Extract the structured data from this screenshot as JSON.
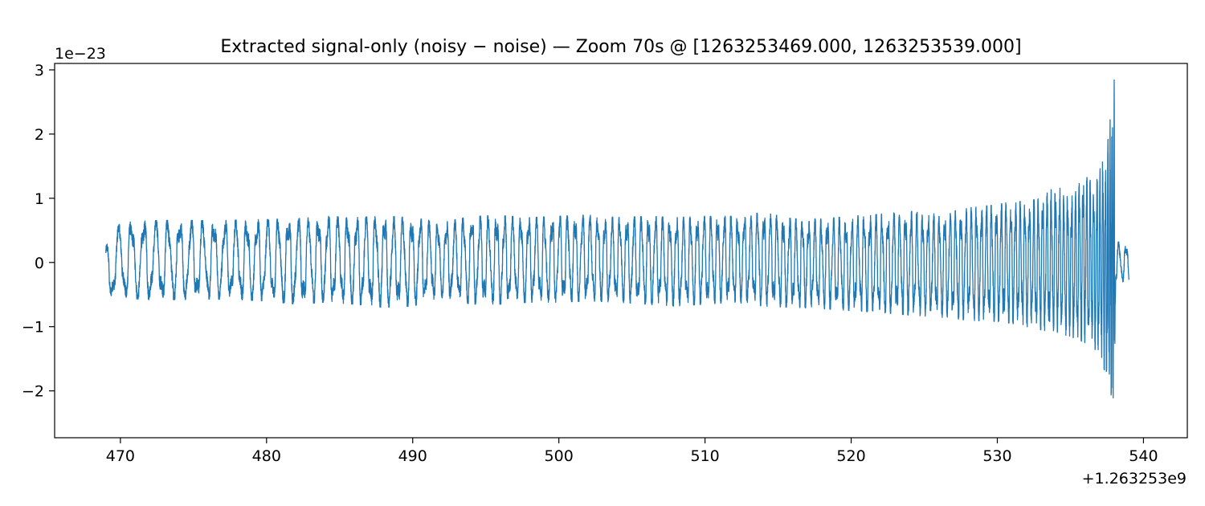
{
  "chart_data": {
    "type": "line",
    "title": "Extracted signal-only (noisy − noise) — Zoom 70s @ [1263253469.000, 1263253539.000]",
    "xlabel": "",
    "ylabel": "",
    "x_offset_label": "+1.263253e9",
    "y_scale_label": "1e−23",
    "xlim": [
      465.5,
      543.0
    ],
    "ylim": [
      -2.73,
      3.1
    ],
    "x_ticks": [
      470,
      480,
      490,
      500,
      510,
      520,
      530,
      540
    ],
    "x_tick_labels": [
      "470",
      "480",
      "490",
      "500",
      "510",
      "520",
      "530",
      "540"
    ],
    "y_ticks": [
      -2,
      -1,
      0,
      1,
      2,
      3
    ],
    "y_tick_labels": [
      "−2",
      "−1",
      "0",
      "1",
      "2",
      "3"
    ],
    "grid": false,
    "legend": "none",
    "color": "#1f77b4",
    "series": [
      {
        "x": [
          469.0,
          470,
          472,
          474,
          476,
          478,
          480,
          482,
          484,
          486,
          488,
          490,
          492,
          494,
          496,
          498,
          500,
          502,
          504,
          506,
          508,
          510,
          512,
          514,
          516,
          518,
          520,
          522,
          524,
          526,
          528,
          530,
          531,
          532,
          533,
          534,
          535,
          536,
          536.5,
          537,
          537.5,
          538.0,
          538.1,
          538.3,
          538.6,
          539.0
        ],
        "upper": [
          0.25,
          0.62,
          0.65,
          0.66,
          0.65,
          0.66,
          0.67,
          0.68,
          0.72,
          0.7,
          0.72,
          0.7,
          0.62,
          0.72,
          0.73,
          0.7,
          0.72,
          0.74,
          0.7,
          0.72,
          0.7,
          0.72,
          0.72,
          0.78,
          0.68,
          0.68,
          0.72,
          0.75,
          0.8,
          0.75,
          0.85,
          0.9,
          0.95,
          0.95,
          1.0,
          1.2,
          1.05,
          1.35,
          1.25,
          1.45,
          1.75,
          2.85,
          0.3,
          0.32,
          0.3,
          0.25
        ],
        "lower": [
          -0.55,
          -0.55,
          -0.58,
          -0.58,
          -0.57,
          -0.58,
          -0.6,
          -0.65,
          -0.62,
          -0.65,
          -0.7,
          -0.68,
          -0.55,
          -0.65,
          -0.65,
          -0.62,
          -0.62,
          -0.6,
          -0.62,
          -0.65,
          -0.68,
          -0.65,
          -0.62,
          -0.68,
          -0.7,
          -0.72,
          -0.75,
          -0.78,
          -0.82,
          -0.85,
          -0.9,
          -0.92,
          -0.95,
          -1.0,
          -1.05,
          -1.1,
          -1.15,
          -1.25,
          -1.3,
          -1.45,
          -1.8,
          -2.45,
          -0.35,
          -0.32,
          -0.3,
          -0.3
        ],
        "freq_hz": [
          1.1,
          1.15,
          1.2,
          1.25,
          1.3,
          1.35,
          1.4,
          1.45,
          1.5,
          1.55,
          1.6,
          1.65,
          1.7,
          1.75,
          1.8,
          1.85,
          1.9,
          1.95,
          2.0,
          2.05,
          2.1,
          2.15,
          2.2,
          2.25,
          2.3,
          2.35,
          2.4,
          2.45,
          2.55,
          2.65,
          2.8,
          3.0,
          3.1,
          3.2,
          3.35,
          3.5,
          3.7,
          4.0,
          4.3,
          4.8,
          6.0,
          8.0,
          2.0,
          2.0,
          2.0,
          2.0
        ]
      }
    ]
  }
}
